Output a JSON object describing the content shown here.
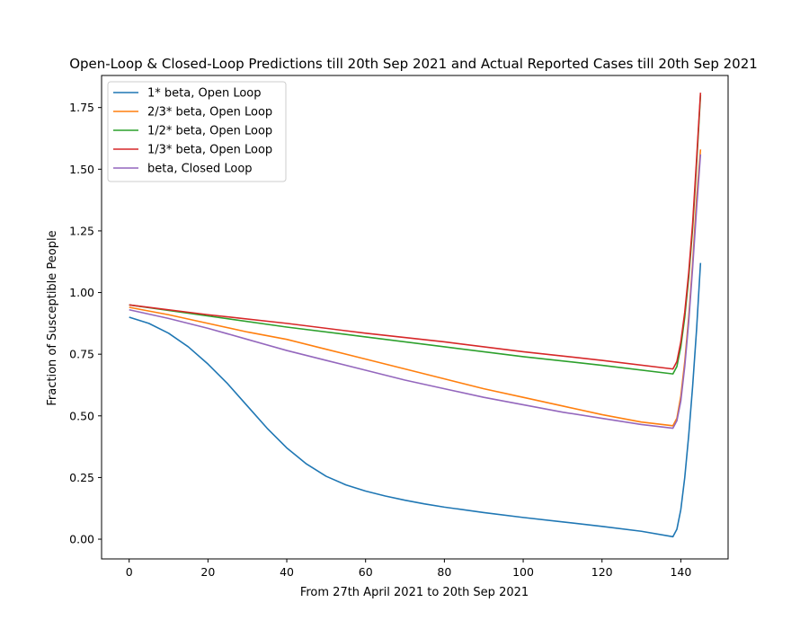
{
  "chart_data": {
    "type": "line",
    "title": "Open-Loop & Closed-Loop Predictions till 20th Sep 2021 and Actual Reported Cases till 20th Sep 2021",
    "xlabel": "From 27th April 2021 to 20th Sep 2021",
    "ylabel": "Fraction of Susceptible People",
    "xlim": [
      -7,
      152
    ],
    "ylim": [
      -0.08,
      1.88
    ],
    "xticks": [
      0,
      20,
      40,
      60,
      80,
      100,
      120,
      140
    ],
    "xtick_labels": [
      "0",
      "20",
      "40",
      "60",
      "80",
      "100",
      "120",
      "140"
    ],
    "yticks": [
      0.0,
      0.25,
      0.5,
      0.75,
      1.0,
      1.25,
      1.5,
      1.75
    ],
    "ytick_labels": [
      "0.00",
      "0.25",
      "0.50",
      "0.75",
      "1.00",
      "1.25",
      "1.50",
      "1.75"
    ],
    "grid": false,
    "legend_position": "upper-left",
    "series": [
      {
        "name": "1* beta, Open Loop",
        "color": "#1f77b4",
        "points": [
          [
            0,
            0.9
          ],
          [
            5,
            0.875
          ],
          [
            10,
            0.835
          ],
          [
            15,
            0.78
          ],
          [
            20,
            0.71
          ],
          [
            25,
            0.63
          ],
          [
            30,
            0.54
          ],
          [
            35,
            0.45
          ],
          [
            40,
            0.37
          ],
          [
            45,
            0.305
          ],
          [
            50,
            0.255
          ],
          [
            55,
            0.22
          ],
          [
            60,
            0.195
          ],
          [
            65,
            0.175
          ],
          [
            70,
            0.158
          ],
          [
            75,
            0.143
          ],
          [
            80,
            0.13
          ],
          [
            90,
            0.108
          ],
          [
            100,
            0.088
          ],
          [
            110,
            0.07
          ],
          [
            120,
            0.052
          ],
          [
            130,
            0.032
          ],
          [
            138,
            0.01
          ],
          [
            139,
            0.04
          ],
          [
            140,
            0.12
          ],
          [
            141,
            0.25
          ],
          [
            142,
            0.42
          ],
          [
            143,
            0.62
          ],
          [
            144,
            0.85
          ],
          [
            145,
            1.12
          ]
        ]
      },
      {
        "name": "2/3* beta, Open Loop",
        "color": "#ff7f0e",
        "points": [
          [
            0,
            0.94
          ],
          [
            10,
            0.91
          ],
          [
            20,
            0.875
          ],
          [
            30,
            0.84
          ],
          [
            40,
            0.81
          ],
          [
            50,
            0.77
          ],
          [
            60,
            0.73
          ],
          [
            70,
            0.69
          ],
          [
            80,
            0.65
          ],
          [
            90,
            0.61
          ],
          [
            100,
            0.575
          ],
          [
            110,
            0.54
          ],
          [
            120,
            0.505
          ],
          [
            130,
            0.475
          ],
          [
            138,
            0.46
          ],
          [
            139,
            0.49
          ],
          [
            140,
            0.58
          ],
          [
            141,
            0.72
          ],
          [
            142,
            0.9
          ],
          [
            143,
            1.12
          ],
          [
            144,
            1.38
          ],
          [
            145,
            1.58
          ]
        ]
      },
      {
        "name": "1/2* beta, Open Loop",
        "color": "#2ca02c",
        "points": [
          [
            0,
            0.95
          ],
          [
            20,
            0.905
          ],
          [
            40,
            0.86
          ],
          [
            60,
            0.82
          ],
          [
            80,
            0.78
          ],
          [
            100,
            0.74
          ],
          [
            120,
            0.705
          ],
          [
            138,
            0.67
          ],
          [
            139,
            0.7
          ],
          [
            140,
            0.78
          ],
          [
            141,
            0.9
          ],
          [
            142,
            1.06
          ],
          [
            143,
            1.26
          ],
          [
            144,
            1.52
          ],
          [
            145,
            1.8
          ]
        ]
      },
      {
        "name": "1/3* beta, Open Loop",
        "color": "#d62728",
        "points": [
          [
            0,
            0.95
          ],
          [
            20,
            0.91
          ],
          [
            40,
            0.875
          ],
          [
            60,
            0.835
          ],
          [
            80,
            0.8
          ],
          [
            100,
            0.76
          ],
          [
            120,
            0.725
          ],
          [
            138,
            0.69
          ],
          [
            139,
            0.72
          ],
          [
            140,
            0.8
          ],
          [
            141,
            0.92
          ],
          [
            142,
            1.08
          ],
          [
            143,
            1.28
          ],
          [
            144,
            1.54
          ],
          [
            145,
            1.81
          ]
        ]
      },
      {
        "name": "beta, Closed Loop",
        "color": "#9467bd",
        "points": [
          [
            0,
            0.93
          ],
          [
            10,
            0.895
          ],
          [
            20,
            0.855
          ],
          [
            30,
            0.81
          ],
          [
            40,
            0.765
          ],
          [
            50,
            0.725
          ],
          [
            60,
            0.685
          ],
          [
            70,
            0.645
          ],
          [
            80,
            0.61
          ],
          [
            90,
            0.575
          ],
          [
            100,
            0.545
          ],
          [
            110,
            0.515
          ],
          [
            120,
            0.49
          ],
          [
            130,
            0.465
          ],
          [
            138,
            0.45
          ],
          [
            139,
            0.48
          ],
          [
            140,
            0.56
          ],
          [
            141,
            0.7
          ],
          [
            142,
            0.88
          ],
          [
            143,
            1.1
          ],
          [
            144,
            1.34
          ],
          [
            145,
            1.56
          ]
        ]
      }
    ]
  }
}
